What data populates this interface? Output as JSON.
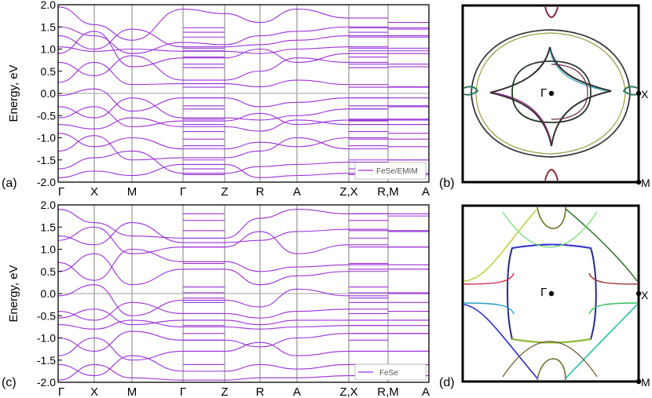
{
  "panels": {
    "a": {
      "label": "(a)",
      "legend": "FeSe/EMIM"
    },
    "b": {
      "label": "(b)"
    },
    "c": {
      "label": "(c)",
      "legend": "FeSe"
    },
    "d": {
      "label": "(d)"
    }
  },
  "fs_labels": {
    "gamma": "Γ",
    "x": "X",
    "m": "M"
  },
  "colors": {
    "band": "#9b30d9",
    "grid": "#b0b0b0",
    "zero": "#b0b0b0",
    "axis": "#000000"
  },
  "chart_data": [
    {
      "type": "line",
      "panel": "(a)",
      "ylabel": "Energy, eV",
      "ylim": [
        -2.0,
        2.0
      ],
      "yticks": [
        "-2.0",
        "-1.5",
        "-1.0",
        "-0.5",
        "0.0",
        "0.5",
        "1.0",
        "1.5",
        "2.0"
      ],
      "xticks": [
        "Γ",
        "X",
        "M",
        "Γ",
        "Z",
        "R",
        "A",
        "Z,X",
        "R,M",
        "A"
      ],
      "legend": "FeSe/EMIM",
      "legend_position": "bottom-right",
      "grid": true,
      "flat_segment_levels": [
        1.48,
        1.38,
        1.27,
        1.02,
        0.96,
        0.82,
        0.66,
        0.58,
        0.14,
        -0.1,
        -0.28,
        -0.35,
        -0.58,
        -0.62,
        -0.7,
        -0.86,
        -1.03,
        -1.18,
        -1.5,
        -1.7,
        -1.83
      ],
      "series": [
        {
          "values": [
            1.95,
            1.55,
            1.2,
            1.9,
            1.8,
            1.6,
            1.9,
            1.7,
            1.6,
            1.7
          ]
        },
        {
          "values": [
            1.5,
            1.3,
            0.9,
            1.15,
            1.1,
            1.3,
            1.4,
            1.5,
            1.45,
            1.5
          ]
        },
        {
          "values": [
            1.3,
            1.0,
            1.45,
            1.05,
            1.05,
            1.1,
            1.2,
            1.3,
            1.3,
            1.35
          ]
        },
        {
          "values": [
            1.05,
            0.95,
            1.0,
            0.95,
            0.95,
            0.9,
            1.0,
            1.05,
            1.02,
            1.0
          ]
        },
        {
          "values": [
            0.9,
            1.4,
            0.6,
            0.8,
            0.8,
            1.0,
            0.7,
            0.9,
            0.9,
            0.9
          ]
        },
        {
          "values": [
            0.7,
            0.4,
            0.85,
            0.3,
            0.3,
            0.5,
            0.8,
            0.7,
            0.6,
            0.65
          ]
        },
        {
          "values": [
            0.25,
            0.7,
            0.2,
            0.22,
            0.22,
            0.15,
            0.3,
            0.2,
            0.15,
            0.15
          ]
        },
        {
          "values": [
            -0.05,
            0.1,
            -0.4,
            -0.1,
            -0.1,
            -0.3,
            -0.2,
            -0.1,
            -0.1,
            -0.1
          ]
        },
        {
          "values": [
            -0.3,
            -0.55,
            -0.1,
            -0.55,
            -0.55,
            -0.6,
            -0.5,
            -0.35,
            -0.3,
            -0.3
          ]
        },
        {
          "values": [
            -0.55,
            -0.3,
            -0.75,
            -0.62,
            -0.62,
            -0.45,
            -0.7,
            -0.6,
            -0.6,
            -0.6
          ]
        },
        {
          "values": [
            -0.7,
            -0.8,
            -0.55,
            -0.75,
            -0.75,
            -0.85,
            -0.6,
            -0.7,
            -0.7,
            -0.7
          ]
        },
        {
          "values": [
            -0.9,
            -1.2,
            -1.0,
            -1.25,
            -1.25,
            -1.1,
            -1.2,
            -1.0,
            -0.9,
            -0.9
          ]
        },
        {
          "values": [
            -1.3,
            -0.95,
            -1.5,
            -1.45,
            -1.45,
            -1.3,
            -1.0,
            -1.25,
            -1.2,
            -1.2
          ]
        },
        {
          "values": [
            -1.7,
            -1.45,
            -1.3,
            -1.8,
            -1.8,
            -1.65,
            -1.6,
            -1.55,
            -1.5,
            -1.5
          ]
        },
        {
          "values": [
            -1.9,
            -1.75,
            -1.85,
            -1.6,
            -1.6,
            -1.9,
            -1.85,
            -1.8,
            -1.8,
            -1.8
          ]
        }
      ]
    },
    {
      "type": "line",
      "panel": "(c)",
      "ylabel": "Energy, eV",
      "ylim": [
        -2.0,
        2.0
      ],
      "yticks": [
        "-2.0",
        "-1.5",
        "-1.0",
        "-0.5",
        "0.0",
        "0.5",
        "1.0",
        "1.5",
        "2.0"
      ],
      "xticks": [
        "Γ",
        "X",
        "M",
        "Γ",
        "Z",
        "R",
        "A",
        "Z,X",
        "R,M",
        "A"
      ],
      "legend": "FeSe",
      "legend_position": "bottom-right",
      "grid": true,
      "flat_segment_levels": [
        1.8,
        1.65,
        1.42,
        1.25,
        1.05,
        0.68,
        0.55,
        0.15,
        0.02,
        -0.1,
        -0.2,
        -0.45,
        -0.6,
        -0.72,
        -0.9,
        -1.05,
        -1.3,
        -1.6
      ],
      "series": [
        {
          "values": [
            1.9,
            1.6,
            1.3,
            1.25,
            1.25,
            1.7,
            1.9,
            1.8,
            1.75,
            1.8
          ]
        },
        {
          "values": [
            1.3,
            1.1,
            1.6,
            1.15,
            1.15,
            1.2,
            1.4,
            1.45,
            1.4,
            1.42
          ]
        },
        {
          "values": [
            1.2,
            1.5,
            0.9,
            1.05,
            1.05,
            1.4,
            0.9,
            1.1,
            1.05,
            1.05
          ]
        },
        {
          "values": [
            0.7,
            0.3,
            1.0,
            0.72,
            0.72,
            0.5,
            0.6,
            0.65,
            0.65,
            0.65
          ]
        },
        {
          "values": [
            0.5,
            0.9,
            0.2,
            0.55,
            0.55,
            0.2,
            0.4,
            0.5,
            0.55,
            0.55
          ]
        },
        {
          "values": [
            -0.05,
            0.2,
            -0.5,
            -0.15,
            -0.15,
            -0.3,
            0.1,
            -0.05,
            0.0,
            0.0
          ]
        },
        {
          "values": [
            -0.4,
            -0.6,
            -0.2,
            -0.45,
            -0.45,
            -0.55,
            -0.4,
            -0.35,
            -0.4,
            -0.4
          ]
        },
        {
          "values": [
            -0.55,
            -0.35,
            -0.7,
            -0.6,
            -0.6,
            -0.7,
            -0.6,
            -0.6,
            -0.6,
            -0.6
          ]
        },
        {
          "values": [
            -0.7,
            -0.8,
            -0.6,
            -0.75,
            -0.75,
            -0.8,
            -0.75,
            -0.72,
            -0.72,
            -0.72
          ]
        },
        {
          "values": [
            -1.0,
            -1.3,
            -0.85,
            -1.05,
            -1.05,
            -1.2,
            -1.0,
            -0.9,
            -0.9,
            -0.9
          ]
        },
        {
          "values": [
            -1.4,
            -1.0,
            -1.5,
            -1.3,
            -1.3,
            -1.1,
            -1.4,
            -1.3,
            -1.3,
            -1.3
          ]
        },
        {
          "values": [
            -1.6,
            -1.85,
            -1.4,
            -1.75,
            -1.75,
            -1.6,
            -1.7,
            -1.6,
            -1.6,
            -1.6
          ]
        },
        {
          "values": [
            -1.95,
            -1.6,
            -1.9,
            -1.95,
            -1.95,
            -1.9,
            -1.9,
            -1.85,
            -1.85,
            -1.85
          ]
        }
      ]
    }
  ]
}
